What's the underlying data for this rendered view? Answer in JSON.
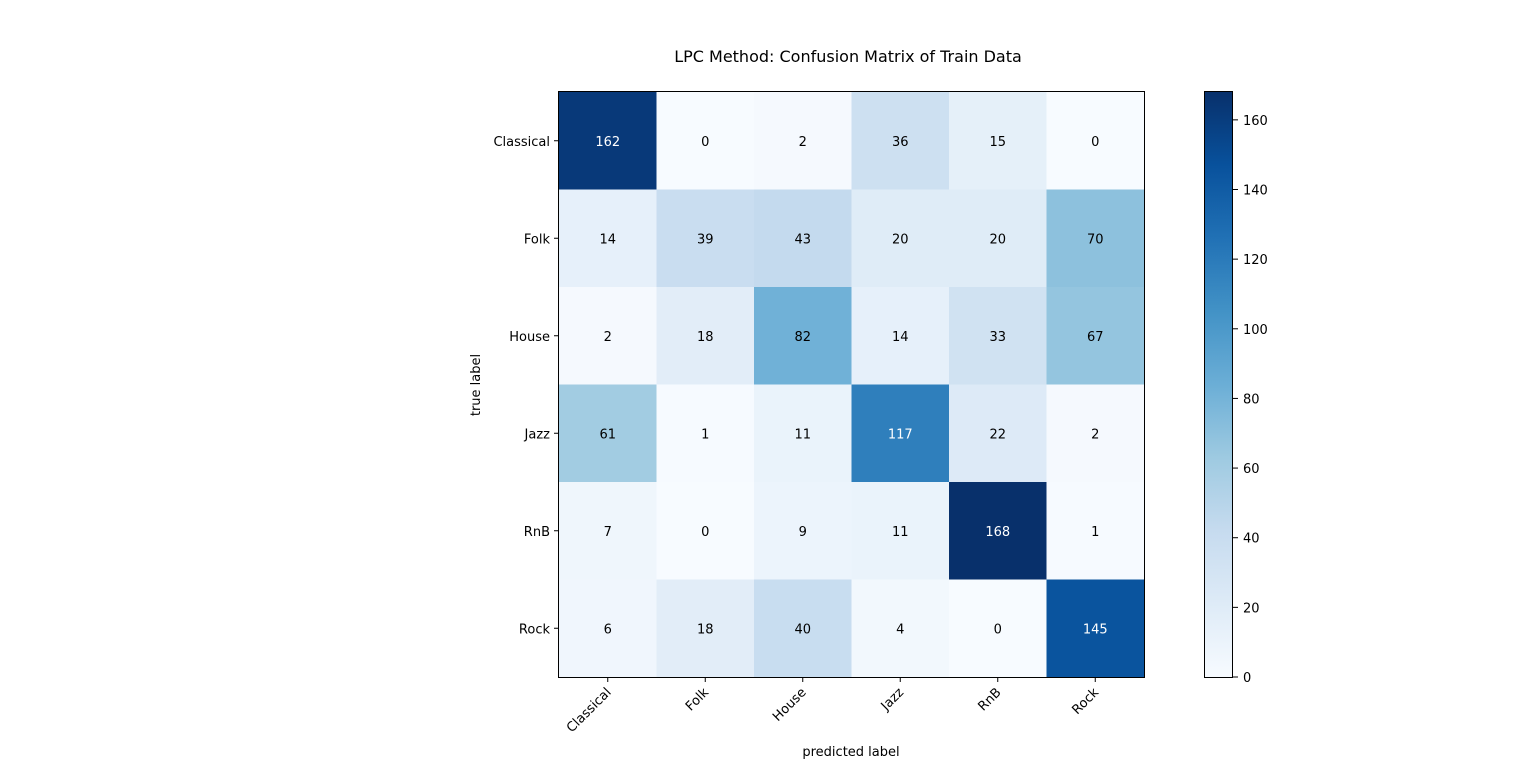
{
  "chart_data": {
    "type": "heatmap",
    "title": "LPC Method: Confusion Matrix of Train Data",
    "xlabel": "predicted label",
    "ylabel": "true label",
    "x_categories": [
      "Classical",
      "Folk",
      "House",
      "Jazz",
      "RnB",
      "Rock"
    ],
    "y_categories": [
      "Classical",
      "Folk",
      "House",
      "Jazz",
      "RnB",
      "Rock"
    ],
    "values": [
      [
        162,
        0,
        2,
        36,
        15,
        0
      ],
      [
        14,
        39,
        43,
        20,
        20,
        70
      ],
      [
        2,
        18,
        82,
        14,
        33,
        67
      ],
      [
        61,
        1,
        11,
        117,
        22,
        2
      ],
      [
        7,
        0,
        9,
        11,
        168,
        1
      ],
      [
        6,
        18,
        40,
        4,
        0,
        145
      ]
    ],
    "colormap": "Blues",
    "color_min": "#f7fbff",
    "color_max": "#08306b",
    "vmin": 0,
    "vmax": 168,
    "colorbar_ticks": [
      0,
      20,
      40,
      60,
      80,
      100,
      120,
      140,
      160
    ],
    "x_tick_rotation_deg": 45,
    "text_threshold": 84
  }
}
